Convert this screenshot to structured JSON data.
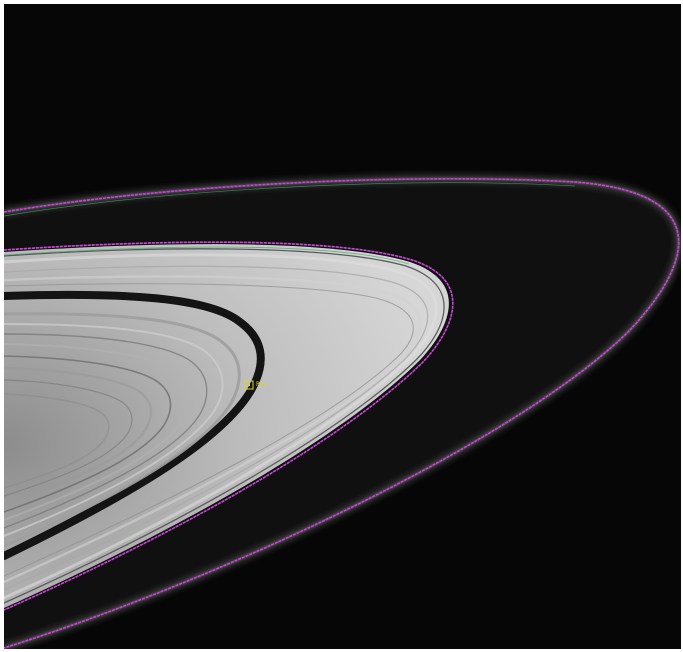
{
  "annotation": {
    "label": "Pan",
    "color": "#d8d81a"
  },
  "colors": {
    "background": "#060606",
    "frame": "#ffffff",
    "ring_light": "#c9c9c9",
    "ring_dark": "#9a9a9a",
    "gap": "#111111",
    "f_ring_glow": "#2e2e2e",
    "trace_magenta": "#d040e0",
    "trace_green": "#3fb06a"
  }
}
